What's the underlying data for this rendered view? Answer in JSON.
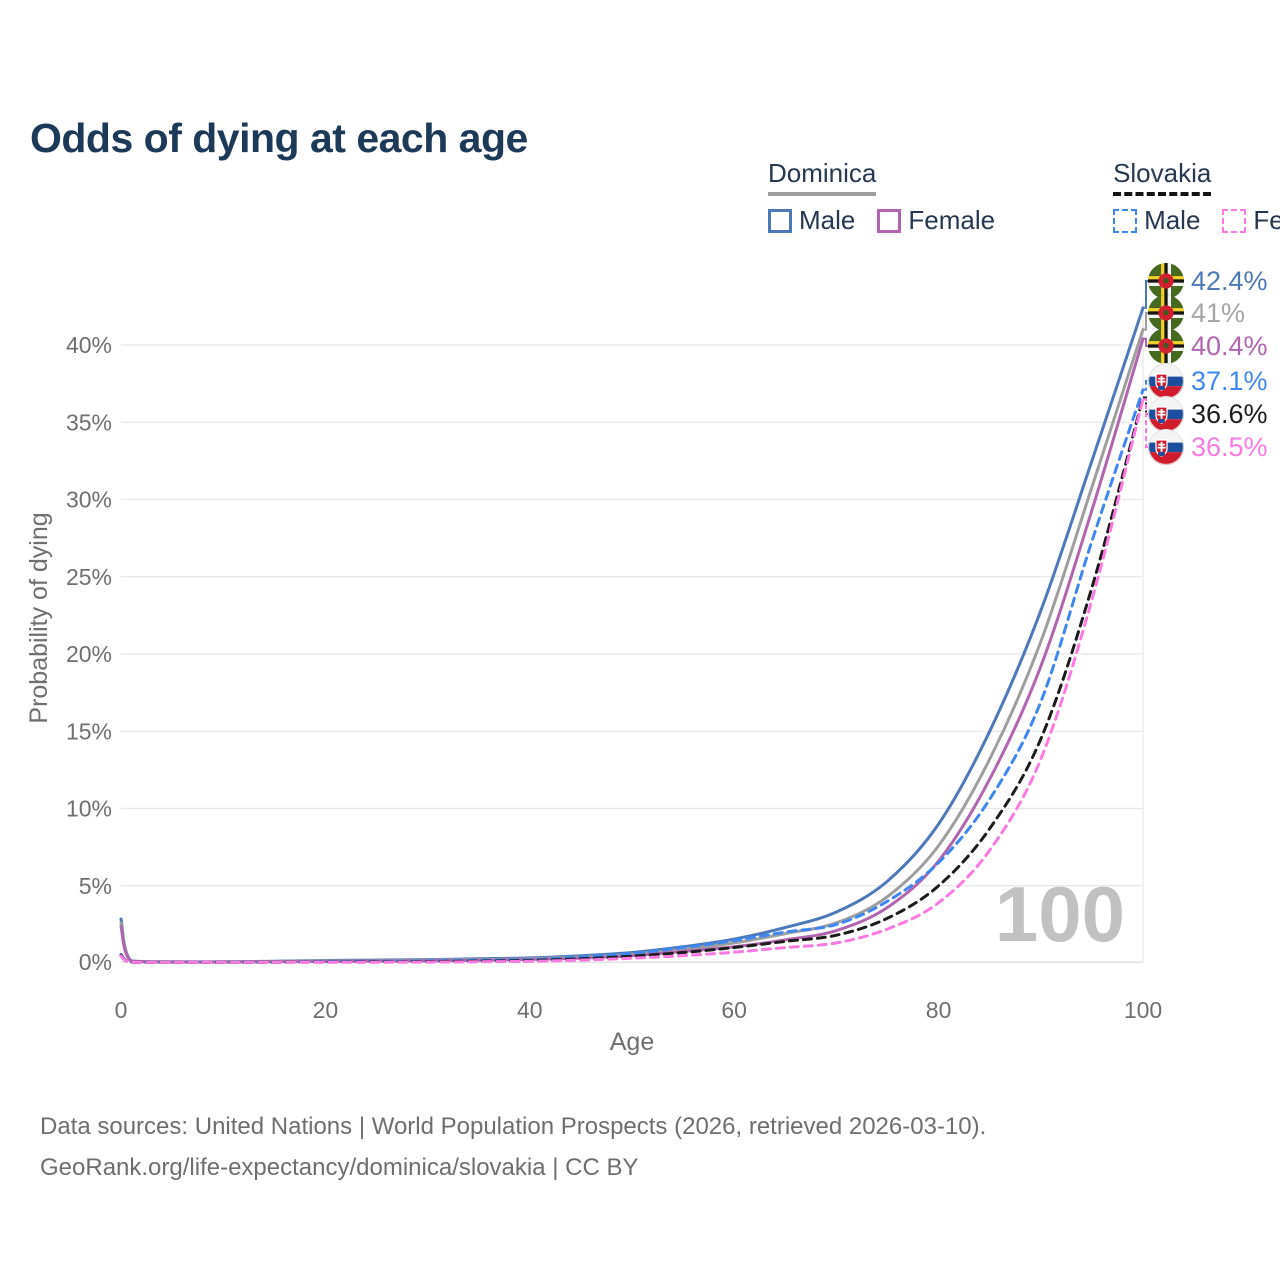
{
  "title": "Odds of dying at each age",
  "watermark_hover_age": "100",
  "legend": {
    "groups": [
      {
        "name": "Dominica",
        "line_style": "solid",
        "underline_color": "#9e9e9e",
        "items": [
          {
            "label": "Male",
            "color": "#4e79b9",
            "dashed": false
          },
          {
            "label": "Female",
            "color": "#b165ae",
            "dashed": false
          }
        ]
      },
      {
        "name": "Slovakia",
        "line_style": "dashed",
        "underline_color": "#141414",
        "items": [
          {
            "label": "Male",
            "color": "#3e86f0",
            "dashed": true
          },
          {
            "label": "Female",
            "color": "#fb7ae2",
            "dashed": true
          }
        ]
      }
    ]
  },
  "chart_data": {
    "type": "line",
    "title": "Odds of dying at each age",
    "xlabel": "Age",
    "ylabel": "Probability of dying",
    "xlim": [
      0,
      100
    ],
    "ylim_percent": [
      0,
      43
    ],
    "grid": "horizontal",
    "x_ticks": [
      0,
      20,
      40,
      60,
      80,
      100
    ],
    "x_tick_labels": [
      "0",
      "20",
      "40",
      "60",
      "80",
      "100"
    ],
    "y_ticks_percent": [
      0,
      5,
      10,
      15,
      20,
      25,
      30,
      35,
      40
    ],
    "y_tick_labels": [
      "0%",
      "5%",
      "10%",
      "15%",
      "20%",
      "25%",
      "30%",
      "35%",
      "40%"
    ],
    "hover_age": 100,
    "x": [
      0,
      1,
      5,
      10,
      15,
      20,
      25,
      30,
      35,
      40,
      45,
      50,
      55,
      60,
      65,
      70,
      75,
      80,
      85,
      90,
      95,
      100
    ],
    "series": [
      {
        "name": "Dominica Male",
        "country": "Dominica",
        "sex": "Male",
        "flag": "dominica",
        "color": "#4e79b9",
        "dashed": false,
        "end_label": "42.4%",
        "end_value_percent": 42.4,
        "label_color": "#4e79b9",
        "values_percent": [
          2.85,
          0.15,
          0.08,
          0.08,
          0.11,
          0.16,
          0.19,
          0.22,
          0.27,
          0.33,
          0.47,
          0.68,
          1.05,
          1.55,
          2.3,
          3.3,
          5.3,
          9.0,
          15.0,
          22.8,
          32.5,
          42.4
        ]
      },
      {
        "name": "Dominica Both sexes",
        "country": "Dominica",
        "sex": "Both sexes",
        "flag": "dominica",
        "color": "#9e9e9e",
        "dashed": false,
        "end_label": "41%",
        "end_value_percent": 41.0,
        "label_color": "#a6a6a6",
        "values_percent": [
          2.6,
          0.13,
          0.07,
          0.07,
          0.09,
          0.13,
          0.15,
          0.18,
          0.22,
          0.27,
          0.39,
          0.57,
          0.9,
          1.3,
          1.9,
          2.6,
          4.3,
          7.6,
          13.2,
          20.8,
          30.8,
          41.0
        ]
      },
      {
        "name": "Dominica Female",
        "country": "Dominica",
        "sex": "Female",
        "flag": "dominica",
        "color": "#b165ae",
        "dashed": false,
        "end_label": "40.4%",
        "end_value_percent": 40.4,
        "label_color": "#b165ae",
        "values_percent": [
          2.35,
          0.12,
          0.06,
          0.06,
          0.08,
          0.1,
          0.12,
          0.14,
          0.18,
          0.23,
          0.32,
          0.47,
          0.75,
          1.05,
          1.5,
          2.1,
          3.6,
          6.6,
          11.9,
          19.2,
          29.3,
          40.4
        ]
      },
      {
        "name": "Slovakia Male",
        "country": "Slovakia",
        "sex": "Male",
        "flag": "slovakia",
        "color": "#3e86f0",
        "dashed": true,
        "end_label": "37.1%",
        "end_value_percent": 37.1,
        "label_color": "#3e86f0",
        "values_percent": [
          0.55,
          0.04,
          0.02,
          0.02,
          0.05,
          0.09,
          0.11,
          0.13,
          0.17,
          0.22,
          0.38,
          0.62,
          1.0,
          1.45,
          2.0,
          2.5,
          4.0,
          6.5,
          10.6,
          16.9,
          27.3,
          37.1
        ]
      },
      {
        "name": "Slovakia Both sexes",
        "country": "Slovakia",
        "sex": "Both sexes",
        "flag": "slovakia",
        "color": "#1c1c1c",
        "dashed": true,
        "end_label": "36.6%",
        "end_value_percent": 36.6,
        "label_color": "#1c1c1c",
        "values_percent": [
          0.5,
          0.035,
          0.018,
          0.018,
          0.035,
          0.06,
          0.08,
          0.09,
          0.12,
          0.16,
          0.27,
          0.44,
          0.68,
          1.0,
          1.4,
          1.8,
          2.9,
          5.0,
          8.7,
          14.5,
          24.3,
          36.6
        ]
      },
      {
        "name": "Slovakia Female",
        "country": "Slovakia",
        "sex": "Female",
        "flag": "slovakia",
        "color": "#fb7ae2",
        "dashed": true,
        "end_label": "36.5%",
        "end_value_percent": 36.5,
        "label_color": "#fb7ae2",
        "values_percent": [
          0.45,
          0.03,
          0.015,
          0.015,
          0.03,
          0.04,
          0.05,
          0.06,
          0.08,
          0.11,
          0.19,
          0.31,
          0.48,
          0.7,
          1.0,
          1.3,
          2.2,
          3.9,
          7.3,
          13.2,
          23.5,
          36.5
        ]
      }
    ]
  },
  "footer": {
    "line1": "Data sources: United Nations | World Population Prospects (2026, retrieved 2026-03-10).",
    "line2": "GeoRank.org/life-expectancy/dominica/slovakia | CC BY"
  },
  "colors": {
    "title": "#1c3a57",
    "axis_text": "#6f6f6f",
    "gridline": "#e7e7e7",
    "watermark": "#c1c1c1",
    "legend_text": "#25384f"
  }
}
